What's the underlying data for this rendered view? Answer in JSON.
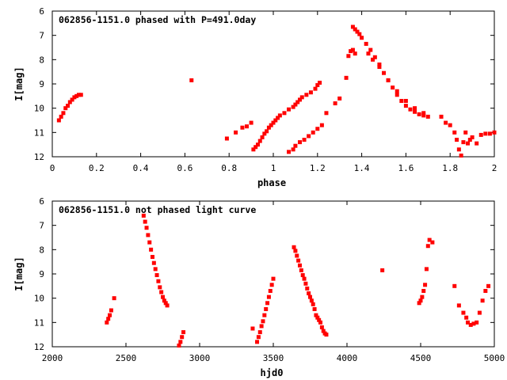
{
  "chart_data": [
    {
      "type": "scatter",
      "title": "062856-1151.0 phased with P=491.0day",
      "xlabel": "phase",
      "ylabel": "I[mag]",
      "xlim": [
        0,
        2
      ],
      "ylim": [
        12,
        6
      ],
      "y_inverted": true,
      "xticks": [
        "0",
        "0.2",
        "0.4",
        "0.6",
        "0.8",
        "1",
        "1.2",
        "1.4",
        "1.6",
        "1.8",
        "2"
      ],
      "yticks": [
        "6",
        "7",
        "8",
        "9",
        "10",
        "11",
        "12"
      ],
      "marker_color": "#ff0000",
      "grid": false,
      "series": [
        {
          "x": [
            0.03,
            0.04,
            0.05,
            0.06,
            0.07,
            0.08,
            0.09,
            0.1,
            0.11,
            0.12,
            0.13,
            0.63,
            0.79,
            0.83,
            0.86,
            0.88,
            0.9,
            0.91,
            0.92,
            0.93,
            0.94,
            0.95,
            0.96,
            0.97,
            0.98,
            0.99,
            1.0,
            1.01,
            1.02,
            1.03,
            1.05,
            1.07,
            1.09,
            1.1,
            1.11,
            1.12,
            1.13,
            1.15,
            1.17,
            1.19,
            1.2,
            1.21,
            1.07,
            1.09,
            1.1,
            1.12,
            1.14,
            1.16,
            1.18,
            1.2,
            1.22,
            1.24,
            1.28,
            1.3,
            1.33,
            1.34,
            1.35,
            1.36,
            1.37,
            1.38,
            1.39,
            1.4,
            1.42,
            1.44,
            1.46,
            1.48,
            1.5,
            1.52,
            1.54,
            1.56,
            1.58,
            1.6,
            1.62,
            1.64,
            1.66,
            1.68,
            1.7,
            1.36,
            1.37,
            1.43,
            1.45,
            1.48,
            1.52,
            1.56,
            1.6,
            1.64,
            1.68,
            1.76,
            1.78,
            1.8,
            1.82,
            1.83,
            1.84,
            1.85,
            1.86,
            1.87,
            1.88,
            1.89,
            1.9,
            1.92,
            1.94,
            1.96,
            1.98,
            2.0
          ],
          "y": [
            10.5,
            10.35,
            10.2,
            10.0,
            9.9,
            9.75,
            9.65,
            9.55,
            9.5,
            9.45,
            9.45,
            8.85,
            11.25,
            11.0,
            10.8,
            10.75,
            10.6,
            11.7,
            11.6,
            11.5,
            11.35,
            11.2,
            11.05,
            10.95,
            10.8,
            10.7,
            10.6,
            10.5,
            10.4,
            10.3,
            10.2,
            10.05,
            9.95,
            9.85,
            9.75,
            9.65,
            9.55,
            9.45,
            9.35,
            9.2,
            9.05,
            8.95,
            11.8,
            11.7,
            11.55,
            11.4,
            11.3,
            11.15,
            11.0,
            10.85,
            10.7,
            10.2,
            9.8,
            9.6,
            8.75,
            7.85,
            7.65,
            6.65,
            6.75,
            6.85,
            6.95,
            7.1,
            7.35,
            7.6,
            7.9,
            8.2,
            8.55,
            8.85,
            9.15,
            9.45,
            9.7,
            9.9,
            10.05,
            10.15,
            10.25,
            10.3,
            10.35,
            7.6,
            7.75,
            7.75,
            8.0,
            8.3,
            8.85,
            9.3,
            9.7,
            10.0,
            10.2,
            10.35,
            10.6,
            10.7,
            11.0,
            11.3,
            11.7,
            11.95,
            11.4,
            11.0,
            11.45,
            11.3,
            11.2,
            11.45,
            11.1,
            11.05,
            11.05,
            11.0
          ]
        }
      ]
    },
    {
      "type": "scatter",
      "title": "062856-1151.0 not phased light curve",
      "xlabel": "hjd0",
      "ylabel": "I[mag]",
      "xlim": [
        2000,
        5000
      ],
      "ylim": [
        12,
        6
      ],
      "y_inverted": true,
      "xticks": [
        "2000",
        "2500",
        "3000",
        "3500",
        "4000",
        "4500",
        "5000"
      ],
      "yticks": [
        "6",
        "7",
        "8",
        "9",
        "10",
        "11",
        "12"
      ],
      "marker_color": "#ff0000",
      "grid": false,
      "series": [
        {
          "x": [
            2370,
            2380,
            2390,
            2400,
            2420,
            2620,
            2630,
            2640,
            2650,
            2660,
            2670,
            2680,
            2690,
            2700,
            2710,
            2720,
            2730,
            2740,
            2750,
            2760,
            2770,
            2780,
            2860,
            2870,
            2880,
            2890,
            3360,
            3390,
            3400,
            3410,
            3420,
            3430,
            3440,
            3450,
            3460,
            3470,
            3480,
            3490,
            3500,
            3640,
            3650,
            3660,
            3670,
            3680,
            3690,
            3700,
            3710,
            3720,
            3730,
            3740,
            3750,
            3760,
            3770,
            3780,
            3790,
            3800,
            3810,
            3820,
            3830,
            3840,
            3850,
            3860,
            4240,
            4490,
            4500,
            4510,
            4520,
            4530,
            4540,
            4550,
            4560,
            4580,
            4730,
            4760,
            4790,
            4810,
            4820,
            4840,
            4860,
            4880,
            4900,
            4920,
            4940,
            4960
          ],
          "y": [
            11.0,
            10.85,
            10.7,
            10.5,
            10.0,
            6.6,
            6.85,
            7.1,
            7.4,
            7.7,
            8.0,
            8.3,
            8.55,
            8.8,
            9.05,
            9.3,
            9.55,
            9.75,
            9.95,
            10.1,
            10.2,
            10.3,
            11.95,
            11.8,
            11.6,
            11.4,
            11.25,
            11.8,
            11.6,
            11.4,
            11.15,
            10.95,
            10.7,
            10.45,
            10.2,
            9.95,
            9.7,
            9.45,
            9.2,
            7.9,
            8.05,
            8.25,
            8.45,
            8.65,
            8.85,
            9.05,
            9.2,
            9.4,
            9.6,
            9.8,
            9.95,
            10.1,
            10.25,
            10.45,
            10.7,
            10.8,
            10.9,
            11.0,
            11.2,
            11.35,
            11.45,
            11.5,
            8.85,
            10.2,
            10.1,
            9.95,
            9.7,
            9.45,
            8.8,
            7.85,
            7.6,
            7.7,
            9.5,
            10.3,
            10.6,
            10.8,
            11.0,
            11.1,
            11.05,
            11.0,
            10.6,
            10.1,
            9.7,
            9.5
          ]
        }
      ]
    }
  ]
}
